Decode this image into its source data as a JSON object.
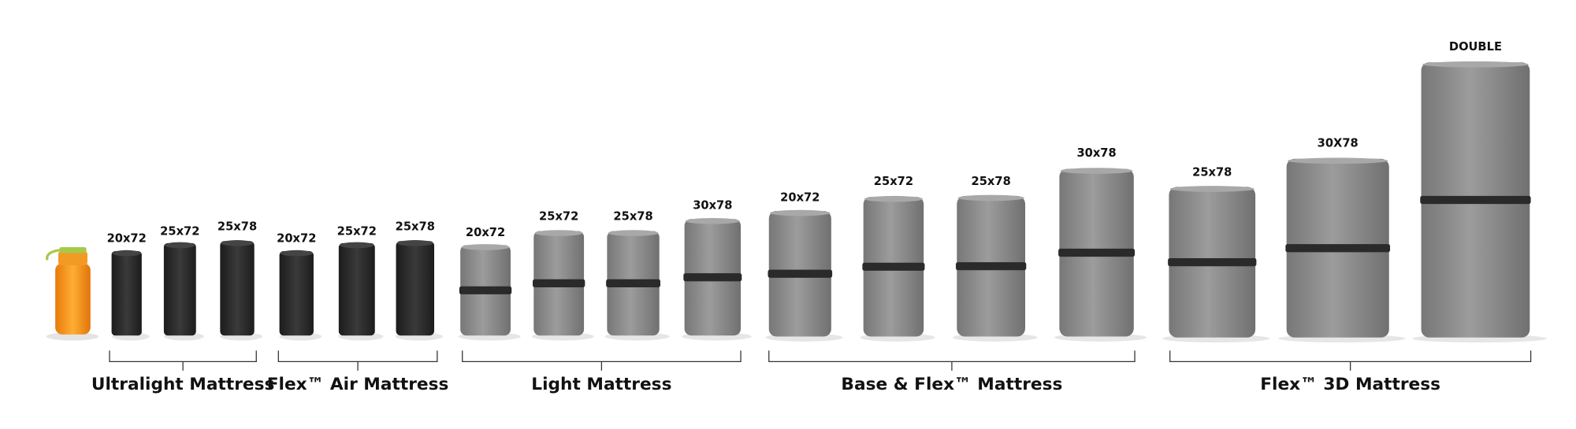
{
  "groups": [
    {
      "name": "Ultralight Mattress",
      "sizes": [
        "20x72",
        "25x72",
        "25x78"
      ]
    },
    {
      "name": "Flex™ Air Mattress",
      "sizes": [
        "20x72",
        "25x72",
        "25x78"
      ]
    },
    {
      "name": "Light Mattress",
      "sizes": [
        "20x72",
        "25x72",
        "25x78",
        "30x78"
      ]
    },
    {
      "name": "Base & Flex™ Mattress",
      "sizes": [
        "20x72",
        "25x72",
        "25x78",
        "30x78"
      ]
    },
    {
      "name": "Flex™ 3D Mattress",
      "sizes": [
        "25x78",
        "30X78",
        "DOUBLE"
      ]
    }
  ]
}
